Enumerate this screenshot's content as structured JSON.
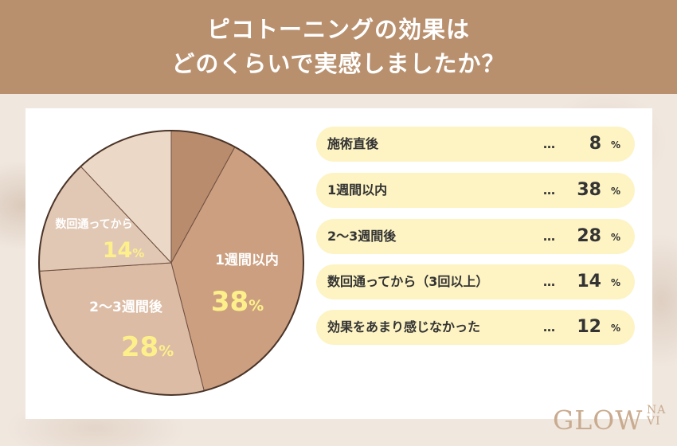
{
  "header": {
    "title_line1": "ピコトーニングの効果は",
    "title_line2": "どのくらいで実感しましたか？"
  },
  "chart_data": {
    "type": "pie",
    "title": "ピコトーニングの効果はどのくらいで実感しましたか？",
    "unit": "%",
    "slices": [
      {
        "label": "施術直後",
        "value": 8,
        "color": "#b88c6c"
      },
      {
        "label": "1週間以内",
        "value": 38,
        "color": "#cc9f80"
      },
      {
        "label": "2〜3週間後",
        "value": 28,
        "color": "#dcbca5"
      },
      {
        "label": "数回通ってから（3回以上）",
        "value": 14,
        "color": "#e1c8b5"
      },
      {
        "label": "効果をあまり感じなかった",
        "value": 12,
        "color": "#ecd8c6"
      }
    ],
    "slice_labels": [
      {
        "text": "1週間以内",
        "value": "38",
        "unit": "%"
      },
      {
        "text": "2〜3週間後",
        "value": "28",
        "unit": "%"
      },
      {
        "text": "数回通ってから",
        "value": "14",
        "unit": "%"
      }
    ]
  },
  "legend": {
    "dots": "…",
    "unit": "%",
    "items": [
      {
        "label": "施術直後",
        "value": "8"
      },
      {
        "label": "1週間以内",
        "value": "38"
      },
      {
        "label": "2〜3週間後",
        "value": "28"
      },
      {
        "label": "数回通ってから（3回以上）",
        "value": "14"
      },
      {
        "label": "効果をあまり感じなかった",
        "value": "12"
      }
    ]
  },
  "logo": {
    "main": "GLOW",
    "sub": "NA VI"
  }
}
